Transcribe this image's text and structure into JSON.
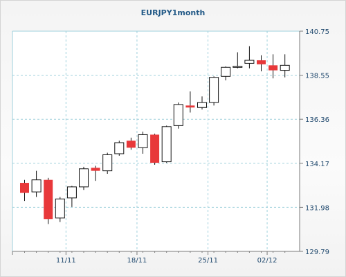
{
  "chart_data": {
    "type": "candlestick",
    "title": "EURJPY1month",
    "x_tick_labels": [
      "11/11",
      "18/11",
      "25/11",
      "02/12"
    ],
    "y_tick_labels": [
      "140.75",
      "138.55",
      "136.36",
      "134.17",
      "131.98",
      "129.79"
    ],
    "ylim": [
      129.79,
      140.75
    ],
    "grid": true,
    "y_axis_side": "right",
    "colors": {
      "bullish": "#ffffff",
      "bearish": "#e8383a",
      "outline": "#111111",
      "grid": "#9fd0dc",
      "axis": "#7a7a7a"
    },
    "candles": [
      {
        "open": 133.2,
        "high": 133.35,
        "low": 132.3,
        "close": 132.7
      },
      {
        "open": 132.75,
        "high": 133.8,
        "low": 132.5,
        "close": 133.35
      },
      {
        "open": 133.35,
        "high": 133.45,
        "low": 131.15,
        "close": 131.4
      },
      {
        "open": 131.45,
        "high": 132.5,
        "low": 131.25,
        "close": 132.4
      },
      {
        "open": 132.45,
        "high": 133.05,
        "low": 132.0,
        "close": 133.0
      },
      {
        "open": 133.0,
        "high": 134.0,
        "low": 132.85,
        "close": 133.9
      },
      {
        "open": 133.95,
        "high": 134.05,
        "low": 133.3,
        "close": 133.8
      },
      {
        "open": 133.8,
        "high": 134.7,
        "low": 133.65,
        "close": 134.6
      },
      {
        "open": 134.65,
        "high": 135.3,
        "low": 134.55,
        "close": 135.2
      },
      {
        "open": 135.3,
        "high": 135.45,
        "low": 134.85,
        "close": 134.95
      },
      {
        "open": 134.95,
        "high": 135.75,
        "low": 134.65,
        "close": 135.6
      },
      {
        "open": 135.6,
        "high": 135.65,
        "low": 134.1,
        "close": 134.2
      },
      {
        "open": 134.25,
        "high": 136.05,
        "low": 134.2,
        "close": 136.0
      },
      {
        "open": 136.05,
        "high": 137.2,
        "low": 135.9,
        "close": 137.1
      },
      {
        "open": 137.05,
        "high": 137.75,
        "low": 136.7,
        "close": 136.95
      },
      {
        "open": 136.95,
        "high": 137.5,
        "low": 136.85,
        "close": 137.2
      },
      {
        "open": 137.2,
        "high": 138.5,
        "low": 137.05,
        "close": 138.45
      },
      {
        "open": 138.5,
        "high": 139.0,
        "low": 138.3,
        "close": 138.95
      },
      {
        "open": 138.95,
        "high": 139.7,
        "low": 138.9,
        "close": 139.0
      },
      {
        "open": 139.15,
        "high": 140.0,
        "low": 138.9,
        "close": 139.3
      },
      {
        "open": 139.3,
        "high": 139.55,
        "low": 138.75,
        "close": 139.1
      },
      {
        "open": 139.05,
        "high": 139.6,
        "low": 138.4,
        "close": 138.8
      },
      {
        "open": 138.8,
        "high": 139.6,
        "low": 138.45,
        "close": 139.05
      }
    ]
  }
}
